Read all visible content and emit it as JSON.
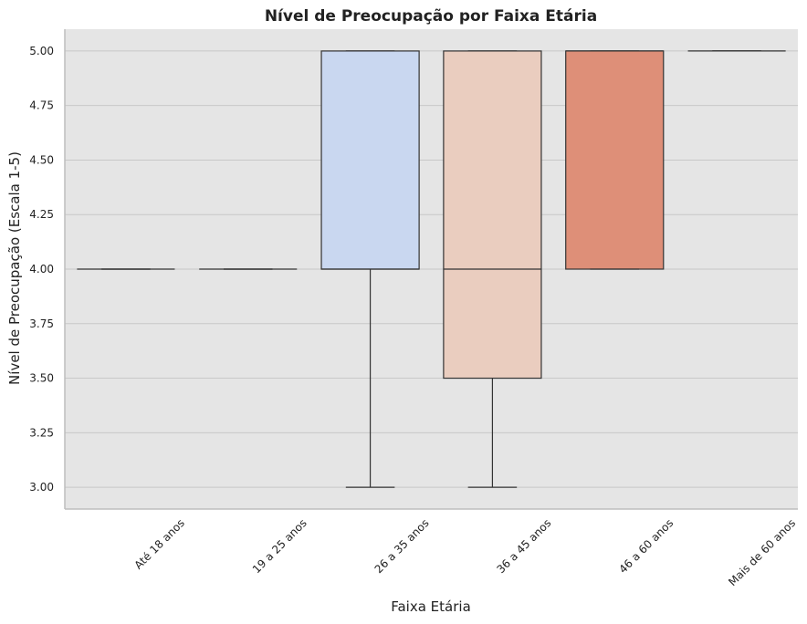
{
  "chart_data": {
    "type": "box",
    "title": "Nível de Preocupação por Faixa Etária",
    "xlabel": "Faixa Etária",
    "ylabel": "Nível de Preocupação (Escala 1-5)",
    "ylim": [
      2.9,
      5.1
    ],
    "yticks": [
      3.0,
      3.25,
      3.5,
      3.75,
      4.0,
      4.25,
      4.5,
      4.75,
      5.0
    ],
    "ytick_labels": [
      "3.00",
      "3.25",
      "3.50",
      "3.75",
      "4.00",
      "4.25",
      "4.50",
      "4.75",
      "5.00"
    ],
    "xtick_labels": [
      "Até 18 anos",
      "19 a 25 anos",
      "26 a 35 anos",
      "36 a 45 anos",
      "46 a 60 anos",
      "Mais de 60 anos"
    ],
    "grid": true,
    "boxes": [
      {
        "whisker_low": 4.0,
        "q1": 4.0,
        "median": 4.0,
        "q3": 4.0,
        "whisker_high": 4.0,
        "color": "#3b4cc0"
      },
      {
        "whisker_low": 4.0,
        "q1": 4.0,
        "median": 4.0,
        "q3": 4.0,
        "whisker_high": 4.0,
        "color": "#7a9df8"
      },
      {
        "whisker_low": 3.0,
        "q1": 4.0,
        "median": 4.0,
        "q3": 5.0,
        "whisker_high": 5.0,
        "color": "#c9d7f0"
      },
      {
        "whisker_low": 3.0,
        "q1": 3.5,
        "median": 4.0,
        "q3": 5.0,
        "whisker_high": 5.0,
        "color": "#eacdbf"
      },
      {
        "whisker_low": 4.0,
        "q1": 4.0,
        "median": 5.0,
        "q3": 5.0,
        "whisker_high": 5.0,
        "color": "#de8f78"
      },
      {
        "whisker_low": 5.0,
        "q1": 5.0,
        "median": 5.0,
        "q3": 5.0,
        "whisker_high": 5.0,
        "color": "#b40426"
      }
    ],
    "colors": {
      "plot_bg": "#e5e5e5",
      "grid": "#c8c8c8",
      "line": "#333333",
      "axis": "#bdbdbd"
    }
  }
}
